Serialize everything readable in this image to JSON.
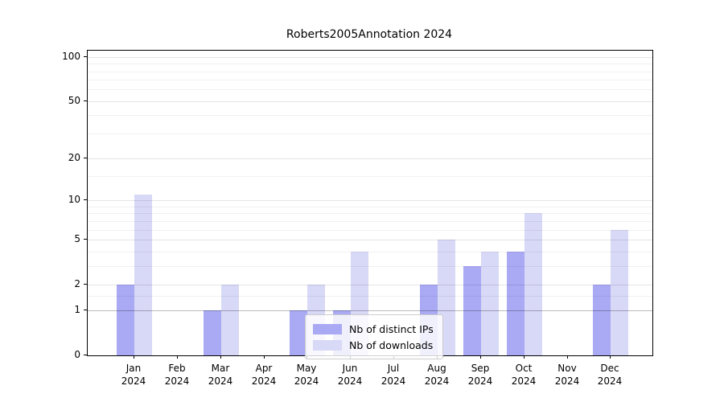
{
  "chart_data": {
    "type": "bar",
    "title": "Roberts2005Annotation 2024",
    "categories": [
      "Jan",
      "Feb",
      "Mar",
      "Apr",
      "May",
      "Jun",
      "Jul",
      "Aug",
      "Sep",
      "Oct",
      "Nov",
      "Dec"
    ],
    "year_label": "2024",
    "series": [
      {
        "name": "Nb of distinct IPs",
        "color": "#a9a9f4",
        "values": [
          2,
          0,
          1,
          0,
          1,
          1,
          0,
          2,
          3,
          4,
          0,
          2
        ]
      },
      {
        "name": "Nb of downloads",
        "color": "#d8d8f7",
        "values": [
          11,
          0,
          2,
          0,
          2,
          4,
          0,
          5,
          4,
          8,
          0,
          6
        ]
      }
    ],
    "yticks": [
      100,
      50,
      20,
      10,
      5,
      2,
      1,
      0
    ],
    "minor_gridline_values": [
      1.5,
      3,
      4,
      6,
      7,
      8,
      9,
      15,
      30,
      40,
      60,
      70,
      80,
      90
    ],
    "scale": "log1p",
    "ylim": [
      0,
      115
    ],
    "grid": true,
    "legend_position": "lower-center"
  }
}
